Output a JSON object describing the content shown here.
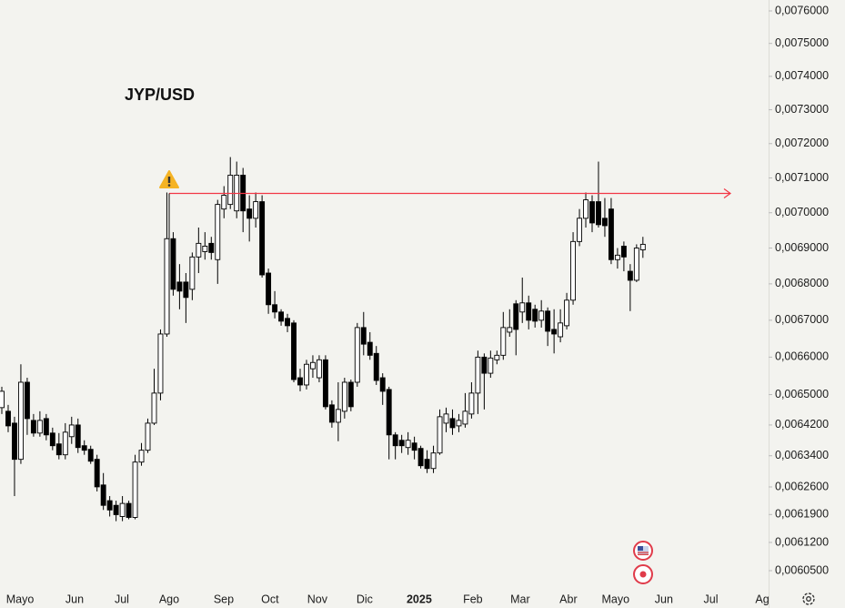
{
  "chart_data": {
    "type": "candlestick",
    "title": "JYP/USD",
    "log_scale": true,
    "up_color": "#ffffff",
    "down_color": "#000000",
    "edge_color": "#000000",
    "line_color": "#f23645",
    "hline": 0.0070553,
    "open": [
      0.0064656,
      0.006456,
      0.0064248,
      0.0063308,
      0.0065328,
      0.006432,
      0.0063989,
      0.0064368,
      0.0063989,
      0.0063707,
      0.0063425,
      0.0063895,
      0.00642,
      0.006366,
      0.0063566,
      0.0063308,
      0.006265,
      0.006225,
      0.0062132,
      0.006185,
      0.006218,
      0.0061827,
      0.0063237,
      0.0063543,
      0.0064248,
      0.006504,
      0.0066625,
      0.0069263,
      0.006805,
      0.006805,
      0.006785,
      0.006875,
      0.00689,
      0.0069132,
      0.0068675,
      0.0070106,
      0.0070237,
      0.0070053,
      0.007108,
      0.0070106,
      0.0069842,
      0.0070316,
      0.00683,
      0.0067425,
      0.0067225,
      0.006705,
      0.0066925,
      0.0065448,
      0.0065256,
      0.0065688,
      0.0065448,
      0.0065928,
      0.0064728,
      0.0064272,
      0.006456,
      0.0065328,
      0.0065328,
      0.00668,
      0.00664,
      0.00661,
      0.0065448,
      0.0065136,
      0.0063942,
      0.0063801,
      0.0063613,
      0.006373,
      0.006359,
      0.0063308,
      0.0063072,
      0.0063472,
      0.0064248,
      0.0064368,
      0.0064177,
      0.0064224,
      0.0064488,
      0.006504,
      0.0066,
      0.0065568,
      0.0065928,
      0.006605,
      0.0066675,
      0.006745,
      0.0067225,
      0.0067475,
      0.00673,
      0.0067,
      0.006725,
      0.006675,
      0.006655,
      0.006685,
      0.006755,
      0.0069184,
      0.0069842,
      0.0070316,
      0.0070316,
      0.0069842,
      0.0070106,
      0.0068675,
      0.0069053,
      0.006835,
      0.00681,
      0.006895
    ],
    "high": [
      0.0065208,
      0.0064728,
      0.0064416,
      0.0065808,
      0.0065448,
      0.0064488,
      0.006456,
      0.0064488,
      0.006413,
      0.0063989,
      0.0064248,
      0.0064416,
      0.0064368,
      0.0063801,
      0.006366,
      0.0063425,
      0.0062955,
      0.0062367,
      0.006225,
      0.0062367,
      0.006225,
      0.0063425,
      0.006373,
      0.0064368,
      0.0065688,
      0.006675,
      0.007058,
      0.0069448,
      0.006855,
      0.00683,
      0.0068875,
      0.0069579,
      0.0069448,
      0.0069316,
      0.0070369,
      0.0070763,
      0.0071606,
      0.0071474,
      0.007129,
      0.00705,
      0.007058,
      0.00705,
      0.0068425,
      0.00678,
      0.00673,
      0.0067175,
      0.0067,
      0.0065688,
      0.0065928,
      0.006605,
      0.006605,
      0.006605,
      0.0064848,
      0.0065328,
      0.0065448,
      0.00654,
      0.0066925,
      0.0067225,
      0.0066675,
      0.00663,
      0.0065568,
      0.0065208,
      0.0064012,
      0.0063942,
      0.0064012,
      0.0063895,
      0.006366,
      0.0063543,
      0.006366,
      0.0064608,
      0.0064656,
      0.0064608,
      0.0064488,
      0.006504,
      0.0065328,
      0.0066175,
      0.00661,
      0.0066175,
      0.0066175,
      0.0067225,
      0.00673,
      0.006755,
      0.0068175,
      0.0067675,
      0.0067425,
      0.006755,
      0.006735,
      0.00673,
      0.00673,
      0.006775,
      0.0069448,
      0.0070106,
      0.007058,
      0.00705,
      0.0071474,
      0.0070421,
      0.0070421,
      0.0069,
      0.0069184,
      0.006855,
      0.0069105,
      0.0069316
    ],
    "low": [
      0.0064488,
      0.0064012,
      0.0062367,
      0.006319,
      0.0063942,
      0.0063895,
      0.0063895,
      0.0063801,
      0.0063543,
      0.0063308,
      0.0063308,
      0.0063707,
      0.0063472,
      0.0063425,
      0.006319,
      0.0062485,
      0.0062015,
      0.006185,
      0.0061733,
      0.0061733,
      0.006178,
      0.006178,
      0.0063143,
      0.0063472,
      0.00642,
      0.0064848,
      0.006655,
      0.0067675,
      0.00673,
      0.0066925,
      0.006755,
      0.00683,
      0.0068675,
      0.0068675,
      0.0068,
      0.0069842,
      0.0070106,
      0.0069842,
      0.0069448,
      0.0069184,
      0.0069579,
      0.0068175,
      0.0067175,
      0.006705,
      0.006685,
      0.0066675,
      0.0065328,
      0.0065088,
      0.0065136,
      0.0065448,
      0.0065328,
      0.0064608,
      0.006413,
      0.0063777,
      0.0064368,
      0.006456,
      0.0065208,
      0.006605,
      0.0065928,
      0.0065256,
      0.0064728,
      0.0063308,
      0.0063308,
      0.0063472,
      0.0063425,
      0.0063308,
      0.0063072,
      0.0062955,
      0.0062955,
      0.0063425,
      0.0064012,
      0.0063942,
      0.0064012,
      0.006413,
      0.0064368,
      0.0064488,
      0.0064608,
      0.0065448,
      0.0065808,
      0.0065928,
      0.006655,
      0.006605,
      0.0066925,
      0.006675,
      0.00668,
      0.00668,
      0.00663,
      0.00661,
      0.00664,
      0.006675,
      0.0067425,
      0.0069053,
      0.0069579,
      0.0069448,
      0.0069579,
      0.0069316,
      0.006855,
      0.0068425,
      0.006835,
      0.006725,
      0.006805,
      0.0068725
    ],
    "close": [
      0.0065088,
      0.0064177,
      0.0063308,
      0.0065328,
      0.0064368,
      0.0063989,
      0.006432,
      0.0063942,
      0.006366,
      0.0063425,
      0.0064012,
      0.00642,
      0.0063613,
      0.0063543,
      0.006326,
      0.0062602,
      0.0062132,
      0.0062015,
      0.0061897,
      0.006218,
      0.0061827,
      0.0063237,
      0.0063543,
      0.0064248,
      0.006504,
      0.0066625,
      0.0069263,
      0.006785,
      0.00678,
      0.0067625,
      0.006875,
      0.0069132,
      0.0069053,
      0.0068875,
      0.0070237,
      0.00705,
      0.007108,
      0.007108,
      0.0070053,
      0.0069842,
      0.0070316,
      0.006825,
      0.0067425,
      0.0067225,
      0.0066975,
      0.006685,
      0.00654,
      0.0065256,
      0.0065808,
      0.0065856,
      0.0065928,
      0.006468,
      0.0064272,
      0.0064608,
      0.0065328,
      0.006468,
      0.00668,
      0.006635,
      0.006605,
      0.0065376,
      0.0065088,
      0.0063942,
      0.006366,
      0.006366,
      0.0063801,
      0.0063543,
      0.0063143,
      0.0063072,
      0.0063472,
      0.0064416,
      0.0064488,
      0.006413,
      0.006432,
      0.006456,
      0.006504,
      0.0066,
      0.0065568,
      0.0065976,
      0.006605,
      0.00668,
      0.00668,
      0.006675,
      0.0067475,
      0.0067,
      0.0066975,
      0.006725,
      0.00667,
      0.0066625,
      0.0066925,
      0.006755,
      0.0069184,
      0.0069842,
      0.0070369,
      0.006971,
      0.006966,
      0.0069632,
      0.0068675,
      0.00688,
      0.006875,
      0.00681,
      0.0069,
      0.0069105
    ],
    "xlim": [
      -0.287,
      120.8
    ],
    "xticks": [
      {
        "value": 2.87,
        "label": "Mayo"
      },
      {
        "value": 11.46,
        "label": "Jun"
      },
      {
        "value": 18.91,
        "label": "Jul"
      },
      {
        "value": 26.36,
        "label": "Ago"
      },
      {
        "value": 34.96,
        "label": "Sep"
      },
      {
        "value": 42.26,
        "label": "Oct"
      },
      {
        "value": 49.71,
        "label": "Nov"
      },
      {
        "value": 57.16,
        "label": "Dic"
      },
      {
        "value": 65.76,
        "label": "2025"
      },
      {
        "value": 74.21,
        "label": "Feb"
      },
      {
        "value": 81.66,
        "label": "Mar"
      },
      {
        "value": 89.26,
        "label": "Abr"
      },
      {
        "value": 96.7,
        "label": "Mayo"
      },
      {
        "value": 104.3,
        "label": "Jun"
      },
      {
        "value": 111.7,
        "label": "Jul"
      },
      {
        "value": 119.8,
        "label": "Ag"
      }
    ],
    "ylim": [
      0.0060097,
      0.0076339
    ],
    "yticks": [
      {
        "value": 0.0076,
        "label": "0,0076000"
      },
      {
        "value": 0.0075,
        "label": "0,0075000"
      },
      {
        "value": 0.0074,
        "label": "0,0074000"
      },
      {
        "value": 0.0073,
        "label": "0,0073000"
      },
      {
        "value": 0.0072,
        "label": "0,0072000"
      },
      {
        "value": 0.0071,
        "label": "0,0071000"
      },
      {
        "value": 0.007,
        "label": "0,0070000"
      },
      {
        "value": 0.0069,
        "label": "0,0069000"
      },
      {
        "value": 0.0068,
        "label": "0,0068000"
      },
      {
        "value": 0.0067,
        "label": "0,0067000"
      },
      {
        "value": 0.0066,
        "label": "0,0066000"
      },
      {
        "value": 0.0065,
        "label": "0,0065000"
      },
      {
        "value": 0.00642,
        "label": "0,0064200"
      },
      {
        "value": 0.00634,
        "label": "0,0063400"
      },
      {
        "value": 0.00626,
        "label": "0,0062600"
      },
      {
        "value": 0.00619,
        "label": "0,0061900"
      },
      {
        "value": 0.00612,
        "label": "0,0061200"
      },
      {
        "value": 0.00605,
        "label": "0,0060500"
      }
    ]
  }
}
